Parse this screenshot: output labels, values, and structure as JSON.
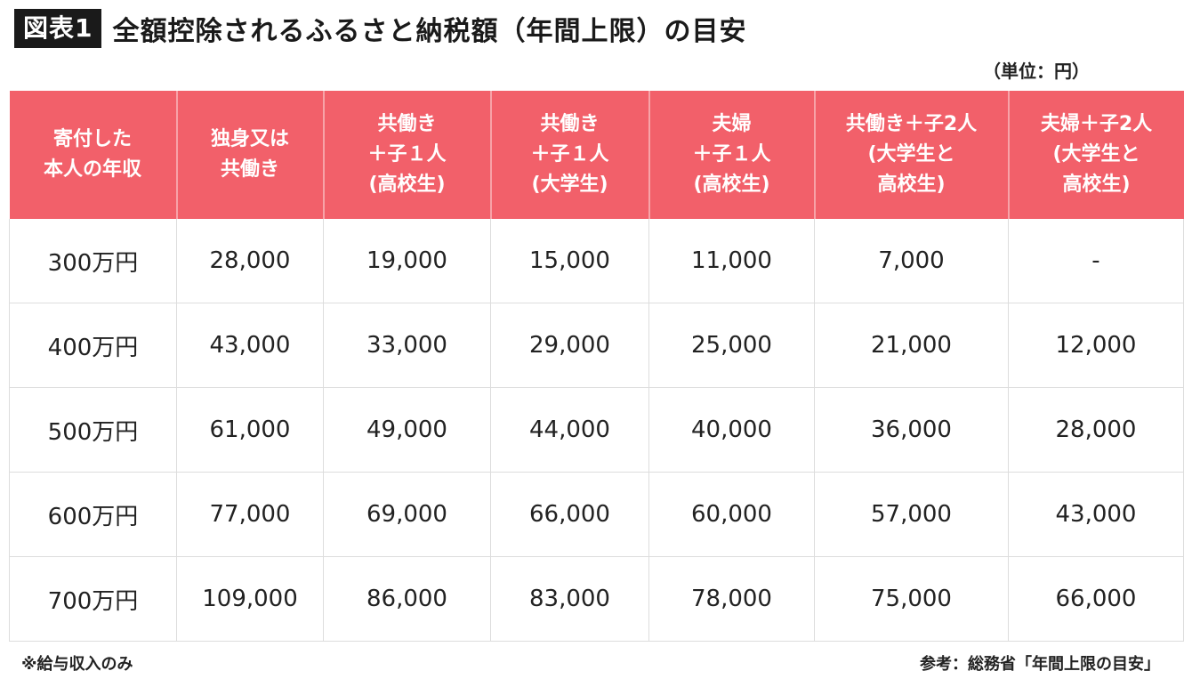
{
  "title": {
    "badge": "図表1",
    "text": "全額控除されるふるさと納税額（年間上限）の目安"
  },
  "unit_note": "（単位：円）",
  "table": {
    "headers": [
      "寄付した\n本人の年収",
      "独身又は\n共働き",
      "共働き\n＋子１人\n(高校生)",
      "共働き\n＋子１人\n(大学生)",
      "夫婦\n＋子１人\n(高校生)",
      "共働き＋子2人\n(大学生と\n高校生)",
      "夫婦＋子2人\n(大学生と\n高校生)"
    ],
    "rows": [
      [
        "300万円",
        "28,000",
        "19,000",
        "15,000",
        "11,000",
        "7,000",
        "-"
      ],
      [
        "400万円",
        "43,000",
        "33,000",
        "29,000",
        "25,000",
        "21,000",
        "12,000"
      ],
      [
        "500万円",
        "61,000",
        "49,000",
        "44,000",
        "40,000",
        "36,000",
        "28,000"
      ],
      [
        "600万円",
        "77,000",
        "69,000",
        "66,000",
        "60,000",
        "57,000",
        "43,000"
      ],
      [
        "700万円",
        "109,000",
        "86,000",
        "83,000",
        "78,000",
        "75,000",
        "66,000"
      ]
    ]
  },
  "footer": {
    "note": "※給与収入のみ",
    "source": "参考：総務省「年間上限の目安」"
  },
  "colors": {
    "header_bg": "#f2606a",
    "badge_bg": "#1a1a1a"
  }
}
